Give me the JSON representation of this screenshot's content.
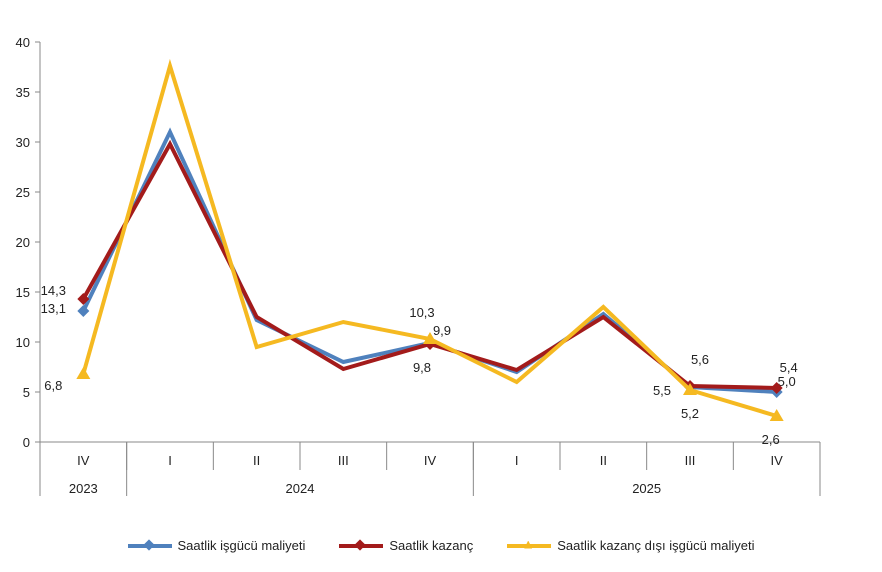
{
  "chart_data": {
    "type": "line",
    "categories": [
      "IV",
      "I",
      "II",
      "III",
      "IV",
      "I",
      "II",
      "III",
      "IV"
    ],
    "years": [
      {
        "label": "2023",
        "span": 1
      },
      {
        "label": "2024",
        "span": 4
      },
      {
        "label": "2025",
        "span": 4
      }
    ],
    "ylim": [
      0,
      40
    ],
    "yticks": [
      "0",
      "5",
      "10",
      "15",
      "20",
      "25",
      "30",
      "35",
      "40"
    ],
    "grid": false,
    "legend_position": "bottom",
    "series": [
      {
        "name": "Saatlik işgücü maliyeti",
        "color": "#4f81bd",
        "marker": "diamond",
        "values": [
          13.1,
          31.0,
          12.2,
          8.0,
          9.9,
          7.0,
          12.8,
          5.5,
          5.0
        ],
        "labels": {
          "0": "13,1",
          "4": "9,9",
          "7": "5,5",
          "8": "5,0"
        }
      },
      {
        "name": "Saatlik kazanç",
        "color": "#a31b1b",
        "marker": "diamond",
        "values": [
          14.3,
          29.8,
          12.5,
          7.3,
          9.8,
          7.2,
          12.5,
          5.6,
          5.4
        ],
        "labels": {
          "0": "14,3",
          "4": "9,8",
          "7": "5,6",
          "8": "5,4"
        }
      },
      {
        "name": "Saatlik kazanç dışı işgücü maliyeti",
        "color": "#f5b921",
        "marker": "triangle",
        "values": [
          6.8,
          37.6,
          9.5,
          12.0,
          10.3,
          6.0,
          13.5,
          5.2,
          2.6
        ],
        "labels": {
          "0": "6,8",
          "4": "10,3",
          "7": "5,2",
          "8": "2,6"
        }
      }
    ]
  }
}
